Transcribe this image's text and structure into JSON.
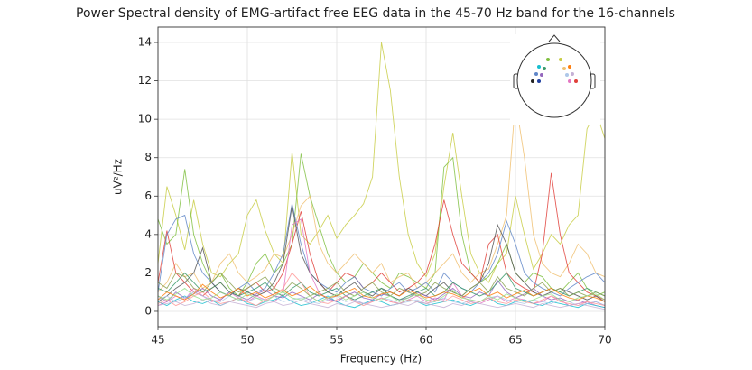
{
  "chart_data": {
    "type": "line",
    "title": "Power Spectral density of EMG-artifact free EEG data in the 45-70 Hz band for the 16-channels",
    "xlabel": "Frequency (Hz)",
    "ylabel": "uV²/Hz",
    "xlim": [
      45,
      70
    ],
    "xticks": [
      45,
      50,
      55,
      60,
      65,
      70
    ],
    "ylim": [
      -0.8,
      14.8
    ],
    "yticks": [
      0,
      2,
      4,
      6,
      8,
      10,
      12,
      14
    ],
    "grid": true,
    "x": [
      45,
      45.5,
      46,
      46.5,
      47,
      47.5,
      48,
      48.5,
      49,
      49.5,
      50,
      50.5,
      51,
      51.5,
      52,
      52.5,
      53,
      53.5,
      54,
      54.5,
      55,
      55.5,
      56,
      56.5,
      57,
      57.5,
      58,
      58.5,
      59,
      59.5,
      60,
      60.5,
      61,
      61.5,
      62,
      62.5,
      63,
      63.5,
      64,
      64.5,
      65,
      65.5,
      66,
      66.5,
      67,
      67.5,
      68,
      68.5,
      69,
      69.5,
      70
    ],
    "series": [
      {
        "color": "#c8cc44",
        "values": [
          2.5,
          6.5,
          5.0,
          3.2,
          5.8,
          3.5,
          2.0,
          1.8,
          2.5,
          3.0,
          5.0,
          5.8,
          4.2,
          3.0,
          2.5,
          8.3,
          4.0,
          3.5,
          4.2,
          5.0,
          3.8,
          4.5,
          5.0,
          5.6,
          7.0,
          14.0,
          11.5,
          7.0,
          4.0,
          2.5,
          1.8,
          3.0,
          6.5,
          9.3,
          6.0,
          3.0,
          2.0,
          1.5,
          2.5,
          3.0,
          6.0,
          4.0,
          2.2,
          3.0,
          4.0,
          3.5,
          4.5,
          5.0,
          9.5,
          10.4,
          9.0
        ]
      },
      {
        "color": "#7fbf3f",
        "values": [
          4.8,
          3.5,
          4.0,
          7.4,
          4.0,
          2.5,
          1.5,
          2.0,
          1.2,
          0.8,
          1.5,
          2.5,
          3.0,
          2.0,
          2.5,
          3.5,
          8.2,
          6.0,
          4.5,
          3.0,
          2.0,
          1.5,
          1.8,
          2.5,
          2.0,
          1.5,
          1.2,
          2.0,
          1.8,
          1.5,
          1.2,
          2.0,
          7.5,
          8.0,
          4.0,
          2.0,
          1.5,
          1.8,
          2.5,
          3.5,
          2.0,
          1.5,
          2.0,
          1.8,
          1.2,
          1.0,
          1.5,
          2.0,
          1.2,
          0.8,
          1.0
        ]
      },
      {
        "color": "#f0c070",
        "values": [
          1.0,
          1.5,
          2.5,
          1.8,
          2.0,
          1.2,
          1.5,
          2.5,
          3.0,
          2.0,
          1.5,
          1.8,
          2.2,
          3.0,
          2.8,
          4.0,
          5.5,
          6.0,
          3.5,
          2.5,
          2.0,
          2.5,
          3.0,
          2.5,
          2.0,
          2.5,
          1.5,
          1.8,
          2.0,
          1.2,
          1.5,
          2.0,
          2.5,
          3.0,
          2.0,
          1.5,
          2.0,
          2.2,
          3.5,
          5.0,
          11.0,
          8.0,
          4.0,
          2.5,
          2.0,
          1.8,
          2.5,
          3.5,
          3.0,
          2.0,
          1.8
        ]
      },
      {
        "color": "#e0403a",
        "values": [
          1.5,
          4.2,
          2.0,
          1.5,
          1.0,
          0.8,
          1.2,
          1.5,
          1.0,
          0.8,
          1.2,
          1.5,
          1.0,
          1.2,
          2.0,
          3.5,
          5.2,
          3.0,
          1.5,
          1.0,
          1.5,
          2.0,
          1.8,
          1.2,
          1.5,
          2.0,
          1.5,
          1.0,
          1.2,
          1.5,
          2.0,
          3.5,
          5.8,
          4.0,
          2.5,
          2.0,
          1.5,
          3.5,
          4.0,
          2.0,
          1.5,
          1.2,
          1.0,
          3.0,
          7.2,
          4.0,
          2.0,
          1.5,
          1.0,
          0.8,
          0.6
        ]
      },
      {
        "color": "#5f86c8",
        "values": [
          1.0,
          4.0,
          4.8,
          5.0,
          3.0,
          2.0,
          1.5,
          1.0,
          0.8,
          1.2,
          1.5,
          1.0,
          1.2,
          2.0,
          3.0,
          5.6,
          3.5,
          2.0,
          1.5,
          1.2,
          1.0,
          1.5,
          1.8,
          1.2,
          1.0,
          0.8,
          1.2,
          1.5,
          1.0,
          1.2,
          1.5,
          1.0,
          2.0,
          1.5,
          1.2,
          1.0,
          1.5,
          2.0,
          3.0,
          4.7,
          3.5,
          2.0,
          1.5,
          1.2,
          1.0,
          0.8,
          1.2,
          1.5,
          1.8,
          2.0,
          1.5
        ]
      },
      {
        "color": "#555555",
        "values": [
          0.5,
          0.8,
          1.2,
          1.5,
          2.0,
          3.3,
          1.5,
          1.0,
          0.8,
          1.2,
          1.0,
          0.8,
          1.0,
          1.5,
          2.5,
          5.5,
          3.0,
          2.0,
          1.5,
          1.0,
          0.8,
          1.2,
          1.5,
          1.0,
          0.8,
          1.2,
          1.0,
          0.8,
          1.2,
          1.0,
          0.8,
          1.2,
          1.5,
          1.0,
          0.8,
          1.2,
          1.5,
          2.5,
          4.5,
          3.5,
          2.0,
          1.5,
          1.0,
          0.8,
          1.0,
          1.2,
          1.0,
          0.8,
          0.6,
          0.8,
          0.5
        ]
      },
      {
        "color": "#e377c2",
        "values": [
          0.3,
          0.5,
          0.8,
          0.6,
          1.2,
          0.8,
          0.5,
          0.6,
          1.0,
          0.7,
          0.5,
          0.8,
          0.6,
          0.5,
          0.9,
          4.5,
          4.8,
          2.0,
          1.0,
          0.6,
          0.5,
          0.8,
          0.6,
          0.4,
          0.5,
          0.7,
          0.5,
          0.4,
          0.6,
          0.8,
          0.5,
          0.7,
          0.6,
          1.5,
          0.8,
          0.5,
          0.4,
          0.6,
          0.8,
          0.5,
          0.7,
          0.6,
          0.4,
          0.5,
          0.8,
          0.6,
          0.3,
          0.4,
          0.5,
          0.3,
          0.2
        ]
      },
      {
        "color": "#17becf",
        "values": [
          0.5,
          0.3,
          0.6,
          0.8,
          0.5,
          0.4,
          0.6,
          0.3,
          0.5,
          0.7,
          0.4,
          0.3,
          0.5,
          0.6,
          0.8,
          0.5,
          0.3,
          0.4,
          0.6,
          0.8,
          0.5,
          0.3,
          0.2,
          0.4,
          0.6,
          0.5,
          0.3,
          0.4,
          0.6,
          0.5,
          0.3,
          0.4,
          0.5,
          0.6,
          0.4,
          0.3,
          0.5,
          0.7,
          0.4,
          0.3,
          0.5,
          0.6,
          0.4,
          0.3,
          0.5,
          0.4,
          0.3,
          0.2,
          0.4,
          0.3,
          0.2
        ]
      },
      {
        "color": "#9467bd",
        "values": [
          0.8,
          0.5,
          1.0,
          0.7,
          0.9,
          1.2,
          0.8,
          0.6,
          1.0,
          0.8,
          0.6,
          0.9,
          1.1,
          0.8,
          0.7,
          1.0,
          0.8,
          0.6,
          0.9,
          0.7,
          0.5,
          0.8,
          1.0,
          0.7,
          0.6,
          0.9,
          0.8,
          0.6,
          0.7,
          1.0,
          0.8,
          0.6,
          0.9,
          1.2,
          0.8,
          0.7,
          1.0,
          0.8,
          1.6,
          1.0,
          0.7,
          0.9,
          1.2,
          0.8,
          0.6,
          0.7,
          0.5,
          0.6,
          0.4,
          0.5,
          0.3
        ]
      },
      {
        "color": "#3a9a6a",
        "values": [
          1.2,
          1.0,
          1.5,
          2.0,
          1.5,
          1.0,
          1.2,
          1.5,
          1.0,
          0.8,
          1.0,
          1.2,
          1.5,
          1.0,
          0.8,
          1.2,
          1.5,
          1.0,
          0.8,
          1.0,
          1.2,
          0.8,
          0.6,
          0.8,
          1.0,
          1.2,
          0.8,
          0.6,
          0.8,
          1.0,
          1.2,
          0.8,
          1.0,
          1.5,
          1.2,
          1.0,
          0.8,
          1.0,
          1.5,
          2.0,
          1.2,
          1.0,
          0.8,
          1.0,
          1.2,
          1.0,
          0.8,
          1.0,
          1.2,
          1.0,
          0.8
        ]
      },
      {
        "color": "#aec7e8",
        "values": [
          0.6,
          0.8,
          0.5,
          0.7,
          1.0,
          0.8,
          0.6,
          0.5,
          0.8,
          0.6,
          0.5,
          0.7,
          0.6,
          0.8,
          0.5,
          0.6,
          0.7,
          0.5,
          0.4,
          0.6,
          0.8,
          0.5,
          0.6,
          0.4,
          0.5,
          0.7,
          0.6,
          0.4,
          0.5,
          0.6,
          0.4,
          0.5,
          0.7,
          0.5,
          0.4,
          0.6,
          0.5,
          0.7,
          0.8,
          0.6,
          0.5,
          0.4,
          0.6,
          0.5,
          0.4,
          0.6,
          0.5,
          0.3,
          0.4,
          0.5,
          0.3
        ]
      },
      {
        "color": "#ff9896",
        "values": [
          0.4,
          0.6,
          0.3,
          0.5,
          0.8,
          1.0,
          0.6,
          0.4,
          0.5,
          0.7,
          0.5,
          0.3,
          0.6,
          0.8,
          1.2,
          2.0,
          1.5,
          0.8,
          0.5,
          0.4,
          0.6,
          0.8,
          0.5,
          0.3,
          0.5,
          0.7,
          0.5,
          0.4,
          0.6,
          0.5,
          0.4,
          0.6,
          0.5,
          0.8,
          0.6,
          0.4,
          0.5,
          0.7,
          0.5,
          0.4,
          0.6,
          0.5,
          0.4,
          0.6,
          0.8,
          0.5,
          0.4,
          0.3,
          0.5,
          0.4,
          0.3
        ]
      },
      {
        "color": "#8ca252",
        "values": [
          1.5,
          1.2,
          2.0,
          1.8,
          1.2,
          1.0,
          1.5,
          2.0,
          1.5,
          1.0,
          1.2,
          1.5,
          1.8,
          1.2,
          1.0,
          1.5,
          1.2,
          0.8,
          1.0,
          1.2,
          1.5,
          1.0,
          0.8,
          1.2,
          1.5,
          1.0,
          0.8,
          1.2,
          1.0,
          0.8,
          1.0,
          1.5,
          1.2,
          1.0,
          0.8,
          1.2,
          1.5,
          1.0,
          1.8,
          1.2,
          1.0,
          0.8,
          1.2,
          1.5,
          1.0,
          1.2,
          0.8,
          1.0,
          0.8,
          1.0,
          0.8
        ]
      },
      {
        "color": "#c5b0d5",
        "values": [
          0.3,
          0.4,
          0.5,
          0.3,
          0.4,
          0.6,
          0.4,
          0.3,
          0.5,
          0.4,
          0.3,
          0.2,
          0.4,
          0.5,
          0.3,
          0.4,
          0.6,
          0.4,
          0.3,
          0.2,
          0.4,
          0.3,
          0.5,
          0.4,
          0.3,
          0.2,
          0.3,
          0.4,
          0.3,
          0.5,
          0.4,
          0.3,
          0.2,
          0.4,
          0.3,
          0.5,
          0.4,
          0.3,
          0.2,
          0.3,
          0.4,
          0.3,
          0.2,
          0.4,
          0.3,
          0.2,
          0.3,
          0.4,
          0.3,
          0.2,
          0.1
        ]
      },
      {
        "color": "#ff7f0e",
        "values": [
          0.6,
          1.0,
          0.8,
          0.6,
          0.9,
          1.4,
          1.0,
          0.7,
          0.9,
          1.2,
          0.8,
          1.0,
          0.7,
          0.9,
          1.1,
          0.8,
          1.0,
          1.3,
          0.9,
          0.7,
          0.8,
          1.0,
          1.2,
          0.8,
          0.7,
          0.9,
          1.0,
          0.8,
          1.1,
          0.9,
          0.7,
          0.8,
          1.0,
          0.9,
          0.7,
          1.0,
          1.2,
          0.8,
          1.0,
          0.7,
          0.9,
          1.1,
          0.8,
          1.0,
          1.2,
          0.9,
          0.7,
          0.6,
          0.8,
          0.7,
          0.5
        ]
      },
      {
        "color": "#98df8a",
        "values": [
          0.8,
          0.6,
          0.9,
          1.2,
          0.8,
          0.6,
          0.7,
          1.0,
          0.8,
          0.6,
          0.9,
          0.7,
          0.5,
          0.8,
          1.0,
          0.7,
          0.6,
          0.8,
          0.5,
          0.7,
          0.9,
          0.6,
          0.8,
          1.0,
          0.7,
          0.6,
          0.8,
          0.5,
          0.7,
          0.9,
          0.6,
          0.5,
          0.8,
          1.1,
          0.7,
          0.6,
          0.5,
          0.8,
          0.6,
          0.9,
          0.7,
          0.5,
          0.6,
          0.8,
          0.9,
          0.6,
          0.5,
          0.7,
          0.8,
          0.9,
          0.6
        ]
      }
    ]
  }
}
